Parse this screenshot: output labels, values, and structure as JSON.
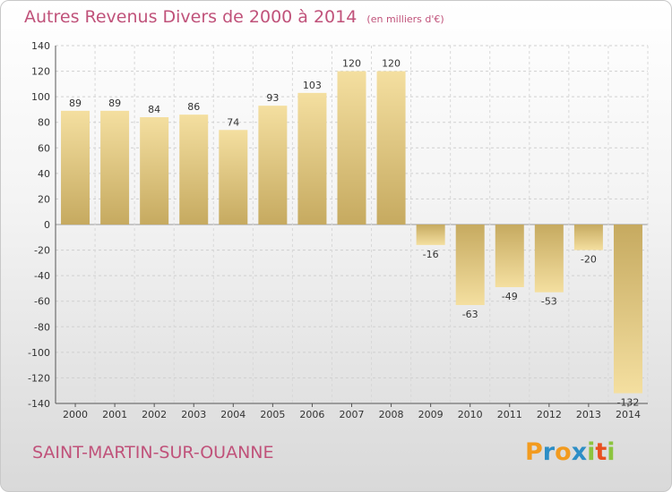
{
  "header": {
    "title": "Autres Revenus Divers de 2000 à 2014",
    "subtitle": "(en milliers d'€)"
  },
  "footer": {
    "commune": "SAINT-MARTIN-SUR-OUANNE",
    "brand": "Proxiti"
  },
  "colors": {
    "title": "#c0527a",
    "bar_light": "#f4dfa0",
    "bar_dark": "#c6aa60",
    "brand_p": "#f29b1f",
    "brand_r": "#2d8ec6",
    "brand_o": "#f29b1f",
    "brand_x": "#2d8ec6",
    "brand_i": "#8cc43e",
    "brand_t": "#e8501f"
  },
  "chart_data": {
    "type": "bar",
    "title": "Autres Revenus Divers de 2000 à 2014",
    "subtitle": "(en milliers d'€)",
    "categories": [
      "2000",
      "2001",
      "2002",
      "2003",
      "2004",
      "2005",
      "2006",
      "2007",
      "2008",
      "2009",
      "2010",
      "2011",
      "2012",
      "2013",
      "2014"
    ],
    "values": [
      89,
      89,
      84,
      86,
      74,
      93,
      103,
      120,
      120,
      -16,
      -63,
      -49,
      -53,
      -20,
      -132
    ],
    "ylim": [
      -140,
      140
    ],
    "yticks": [
      -140,
      -120,
      -100,
      -80,
      -60,
      -40,
      -20,
      0,
      20,
      40,
      60,
      80,
      100,
      120,
      140
    ],
    "grid": true
  }
}
